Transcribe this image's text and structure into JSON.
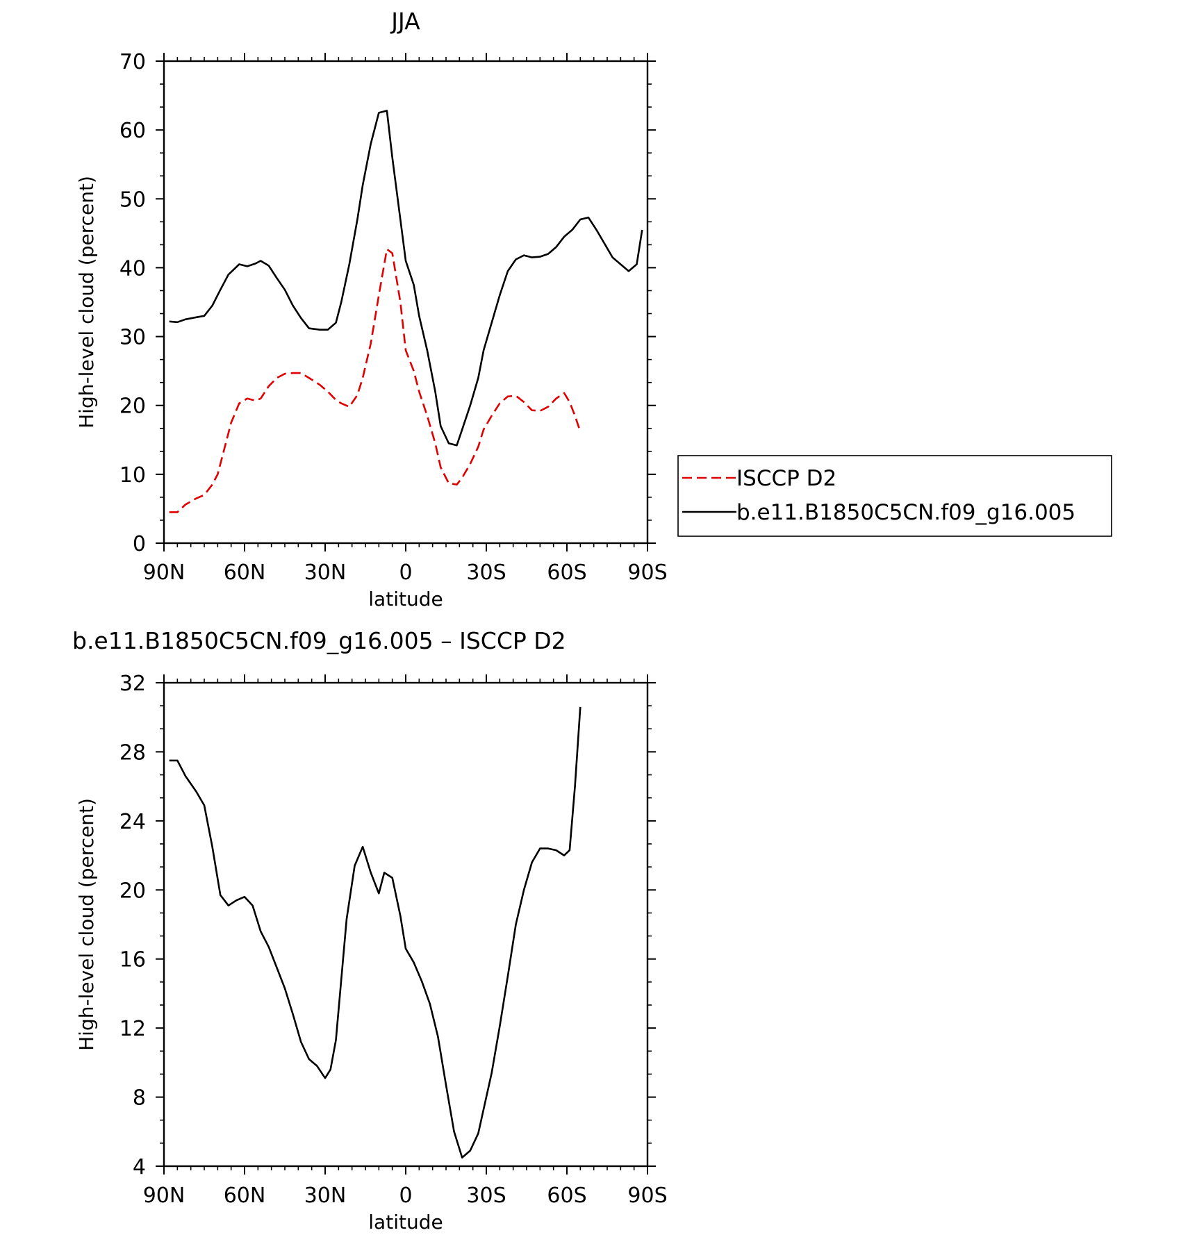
{
  "chart_data": [
    {
      "type": "line",
      "title": "JJA",
      "xlabel": "latitude",
      "ylabel": "High-level cloud (percent)",
      "xlim": [
        90,
        -90
      ],
      "ylim": [
        0,
        70
      ],
      "x_tick_values": [
        90,
        60,
        30,
        0,
        -30,
        -60,
        -90
      ],
      "x_tick_labels": [
        "90N",
        "60N",
        "30N",
        "0",
        "30S",
        "60S",
        "90S"
      ],
      "y_tick_values": [
        0,
        10,
        20,
        30,
        40,
        50,
        60,
        70
      ],
      "y_tick_labels": [
        "0",
        "10",
        "20",
        "30",
        "40",
        "50",
        "60",
        "70"
      ],
      "legend_position": "right",
      "series": [
        {
          "name": "ISCCP D2",
          "color": "#e00000",
          "dash": "dashed",
          "x": [
            88,
            85,
            82,
            78,
            75,
            72,
            70,
            68,
            65,
            62,
            59,
            56,
            54,
            51,
            48,
            45,
            42,
            39,
            36,
            32,
            29,
            26,
            24,
            21,
            18,
            16,
            13,
            10,
            7,
            5,
            2,
            0,
            -3,
            -5,
            -8,
            -11,
            -13,
            -16,
            -19,
            -21,
            -24,
            -27,
            -29,
            -32,
            -35,
            -38,
            -41,
            -44,
            -47,
            -50,
            -53,
            -56,
            -59,
            -61,
            -63,
            -65
          ],
          "y": [
            4.5,
            4.5,
            5.6,
            6.5,
            7.0,
            8.5,
            10.0,
            13.0,
            17.5,
            20.3,
            21.0,
            20.7,
            21.0,
            22.8,
            24.0,
            24.6,
            24.7,
            24.7,
            24.0,
            23.0,
            22.0,
            20.8,
            20.3,
            19.8,
            21.5,
            24.0,
            29.0,
            36.0,
            42.7,
            42.1,
            35.0,
            28.0,
            25.0,
            22.0,
            18.5,
            14.5,
            11.0,
            8.7,
            8.5,
            9.5,
            11.5,
            14.0,
            16.5,
            18.5,
            20.3,
            21.3,
            21.4,
            20.5,
            19.3,
            19.2,
            19.8,
            21.0,
            21.8,
            20.5,
            18.5,
            16.2
          ]
        },
        {
          "name": "b.e11.B1850C5CN.f09_g16.005",
          "color": "#000000",
          "dash": "solid",
          "x": [
            88,
            85,
            82,
            78,
            75,
            72,
            69,
            66,
            62,
            59,
            56,
            54,
            51,
            48,
            45,
            42,
            39,
            36,
            32,
            29,
            26,
            24,
            21,
            18,
            16,
            13,
            10,
            7,
            5,
            2,
            0,
            -3,
            -5,
            -8,
            -11,
            -13,
            -16,
            -19,
            -21,
            -24,
            -27,
            -29,
            -32,
            -35,
            -38,
            -41,
            -44,
            -47,
            -50,
            -53,
            -56,
            -59,
            -62,
            -65,
            -68,
            -71,
            -74,
            -77,
            -80,
            -83,
            -86,
            -88
          ],
          "y": [
            32.2,
            32.1,
            32.5,
            32.8,
            33.0,
            34.5,
            36.8,
            39.0,
            40.5,
            40.2,
            40.6,
            41.0,
            40.3,
            38.5,
            36.8,
            34.5,
            32.7,
            31.2,
            31.0,
            31.0,
            32.0,
            35.0,
            40.5,
            47.0,
            52.0,
            58.0,
            62.5,
            62.8,
            56.0,
            47.0,
            41.0,
            37.5,
            33.0,
            28.0,
            22.0,
            17.0,
            14.5,
            14.2,
            16.5,
            20.0,
            24.0,
            28.0,
            32.0,
            36.0,
            39.5,
            41.2,
            41.8,
            41.5,
            41.6,
            42.0,
            43.0,
            44.5,
            45.5,
            47.0,
            47.3,
            45.5,
            43.5,
            41.5,
            40.5,
            39.5,
            40.5,
            45.5
          ]
        }
      ]
    },
    {
      "type": "line",
      "title": "b.e11.B1850C5CN.f09_g16.005 – ISCCP D2",
      "xlabel": "latitude",
      "ylabel": "High-level cloud (percent)",
      "xlim": [
        90,
        -90
      ],
      "ylim": [
        4,
        32
      ],
      "x_tick_values": [
        90,
        60,
        30,
        0,
        -30,
        -60,
        -90
      ],
      "x_tick_labels": [
        "90N",
        "60N",
        "30N",
        "0",
        "30S",
        "60S",
        "90S"
      ],
      "y_tick_values": [
        4,
        8,
        12,
        16,
        20,
        24,
        28,
        32
      ],
      "y_tick_labels": [
        "4",
        "8",
        "12",
        "16",
        "20",
        "24",
        "28",
        "32"
      ],
      "series": [
        {
          "color": "#000000",
          "dash": "solid",
          "x": [
            88,
            85,
            82,
            78,
            75,
            72,
            69,
            66,
            63,
            60,
            57,
            54,
            51,
            48,
            45,
            42,
            39,
            36,
            33,
            30,
            28,
            26,
            24,
            22,
            19,
            16,
            13,
            10,
            8,
            5,
            2,
            0,
            -3,
            -6,
            -9,
            -12,
            -15,
            -18,
            -21,
            -24,
            -27,
            -29,
            -32,
            -35,
            -38,
            -41,
            -44,
            -47,
            -50,
            -53,
            -56,
            -59,
            -61,
            -63,
            -65
          ],
          "y": [
            27.5,
            27.5,
            26.6,
            25.7,
            24.9,
            22.5,
            19.7,
            19.1,
            19.4,
            19.6,
            19.1,
            17.6,
            16.7,
            15.5,
            14.3,
            12.8,
            11.2,
            10.2,
            9.8,
            9.1,
            9.6,
            11.3,
            14.8,
            18.3,
            21.4,
            22.5,
            21.0,
            19.8,
            21.0,
            20.7,
            18.5,
            16.6,
            15.8,
            14.7,
            13.4,
            11.5,
            8.7,
            6.0,
            4.5,
            4.9,
            5.9,
            7.3,
            9.4,
            12.1,
            15.0,
            18.0,
            20.0,
            21.6,
            22.4,
            22.4,
            22.3,
            22.0,
            22.3,
            26.0,
            30.6
          ]
        }
      ]
    }
  ]
}
